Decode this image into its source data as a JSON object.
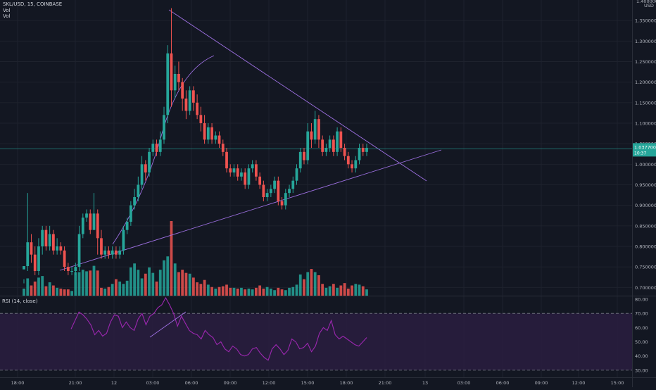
{
  "header": {
    "symbol": "SKL/USD, 15, COINBASE",
    "vol1": "Vol",
    "vol2": "Vol"
  },
  "rsi_panel": {
    "label": "RSI (14, close)"
  },
  "currency": "USD",
  "price_tag": {
    "value": "1.03770000",
    "sub": "10:37"
  },
  "colors": {
    "background": "#131722",
    "up": "#26a69a",
    "down": "#ef5350",
    "line": "#9c6fe0",
    "rsi_fill": "#2a1d3f",
    "rsi_line": "#9c27b0",
    "grid": "#1e222d",
    "price_line": "#26a69a"
  },
  "chart_data": {
    "type": "candlestick",
    "price_axis": {
      "ticks": [
        "0.70000000",
        "0.75000000",
        "0.80000000",
        "0.85000000",
        "0.90000000",
        "0.95000000",
        "1.00000000",
        "1.05000000",
        "1.10000000",
        "1.15000000",
        "1.20000000",
        "1.25000000",
        "1.30000000",
        "1.35000000",
        "1.40000000"
      ],
      "range": [
        0.68,
        1.4
      ]
    },
    "time_axis": {
      "labels": [
        "18:00",
        "21:00",
        "12",
        "03:00",
        "06:00",
        "09:00",
        "12:00",
        "15:00",
        "18:00",
        "21:00",
        "13",
        "03:00",
        "06:00",
        "09:00",
        "12:00",
        "15:00"
      ]
    },
    "rsi_axis": {
      "ticks": [
        "30.00",
        "40.00",
        "50.00",
        "60.00",
        "70.00",
        "80.00"
      ],
      "range": [
        25,
        82
      ],
      "bands": [
        30,
        70
      ]
    },
    "last_price": 1.0377,
    "candles": [
      [
        0.744,
        0.752,
        0.72,
        0.71
      ],
      [
        0.752,
        0.81,
        0.93,
        0.74
      ],
      [
        0.81,
        0.78,
        0.83,
        0.76
      ],
      [
        0.78,
        0.74,
        0.8,
        0.73
      ],
      [
        0.74,
        0.8,
        0.82,
        0.73
      ],
      [
        0.8,
        0.84,
        0.85,
        0.78
      ],
      [
        0.84,
        0.8,
        0.85,
        0.79
      ],
      [
        0.8,
        0.83,
        0.85,
        0.79
      ],
      [
        0.83,
        0.79,
        0.84,
        0.78
      ],
      [
        0.79,
        0.8,
        0.82,
        0.78
      ],
      [
        0.8,
        0.79,
        0.81,
        0.78
      ],
      [
        0.79,
        0.75,
        0.8,
        0.74
      ],
      [
        0.75,
        0.74,
        0.76,
        0.73
      ],
      [
        0.74,
        0.74,
        0.75,
        0.73
      ],
      [
        0.74,
        0.75,
        0.76,
        0.73
      ],
      [
        0.75,
        0.83,
        0.85,
        0.74
      ],
      [
        0.83,
        0.87,
        0.88,
        0.82
      ],
      [
        0.87,
        0.88,
        0.89,
        0.86
      ],
      [
        0.88,
        0.84,
        0.89,
        0.83
      ],
      [
        0.84,
        0.88,
        0.93,
        0.84
      ],
      [
        0.88,
        0.82,
        0.89,
        0.78
      ],
      [
        0.82,
        0.78,
        0.84,
        0.77
      ],
      [
        0.78,
        0.79,
        0.8,
        0.77
      ],
      [
        0.79,
        0.78,
        0.8,
        0.77
      ],
      [
        0.78,
        0.79,
        0.8,
        0.77
      ],
      [
        0.79,
        0.78,
        0.8,
        0.77
      ],
      [
        0.78,
        0.79,
        0.8,
        0.77
      ],
      [
        0.79,
        0.84,
        0.85,
        0.78
      ],
      [
        0.84,
        0.86,
        0.87,
        0.83
      ],
      [
        0.86,
        0.9,
        0.91,
        0.85
      ],
      [
        0.9,
        0.92,
        0.94,
        0.89
      ],
      [
        0.92,
        0.95,
        0.97,
        0.91
      ],
      [
        0.95,
        1.0,
        1.02,
        0.94
      ],
      [
        1.0,
        0.98,
        1.01,
        0.96
      ],
      [
        0.98,
        1.03,
        1.04,
        0.97
      ],
      [
        1.03,
        1.05,
        1.06,
        1.02
      ],
      [
        1.05,
        1.03,
        1.06,
        1.02
      ],
      [
        1.03,
        1.06,
        1.08,
        1.02
      ],
      [
        1.06,
        1.12,
        1.14,
        1.05
      ],
      [
        1.12,
        1.27,
        1.29,
        1.1
      ],
      [
        1.27,
        1.18,
        1.38,
        1.14
      ],
      [
        1.18,
        1.22,
        1.24,
        1.16
      ],
      [
        1.22,
        1.2,
        1.25,
        1.18
      ],
      [
        1.2,
        1.16,
        1.21,
        1.13
      ],
      [
        1.16,
        1.13,
        1.18,
        1.11
      ],
      [
        1.13,
        1.18,
        1.19,
        1.12
      ],
      [
        1.18,
        1.15,
        1.19,
        1.13
      ],
      [
        1.15,
        1.12,
        1.17,
        1.11
      ],
      [
        1.12,
        1.1,
        1.14,
        1.08
      ],
      [
        1.1,
        1.06,
        1.12,
        1.05
      ],
      [
        1.06,
        1.09,
        1.1,
        1.05
      ],
      [
        1.09,
        1.06,
        1.1,
        1.05
      ],
      [
        1.06,
        1.07,
        1.08,
        1.05
      ],
      [
        1.07,
        1.05,
        1.08,
        1.04
      ],
      [
        1.05,
        1.03,
        1.06,
        1.02
      ],
      [
        1.03,
        0.99,
        1.04,
        0.98
      ],
      [
        0.99,
        0.98,
        1.0,
        0.97
      ],
      [
        0.98,
        0.99,
        1.0,
        0.97
      ],
      [
        0.99,
        0.97,
        1.0,
        0.96
      ],
      [
        0.97,
        0.98,
        0.99,
        0.96
      ],
      [
        0.98,
        0.95,
        0.99,
        0.94
      ],
      [
        0.95,
        0.99,
        1.0,
        0.94
      ],
      [
        0.99,
        1.0,
        1.01,
        0.98
      ],
      [
        1.0,
        0.97,
        1.01,
        0.96
      ],
      [
        0.97,
        0.95,
        0.98,
        0.94
      ],
      [
        0.95,
        0.92,
        0.96,
        0.91
      ],
      [
        0.92,
        0.93,
        0.94,
        0.91
      ],
      [
        0.93,
        0.94,
        0.95,
        0.92
      ],
      [
        0.94,
        0.96,
        0.97,
        0.93
      ],
      [
        0.96,
        0.91,
        0.97,
        0.9
      ],
      [
        0.91,
        0.9,
        0.92,
        0.89
      ],
      [
        0.9,
        0.93,
        0.94,
        0.89
      ],
      [
        0.93,
        0.94,
        0.95,
        0.92
      ],
      [
        0.94,
        0.96,
        0.97,
        0.93
      ],
      [
        0.96,
        0.99,
        1.0,
        0.95
      ],
      [
        0.99,
        1.03,
        1.04,
        0.98
      ],
      [
        1.03,
        1.01,
        1.04,
        1.0
      ],
      [
        1.01,
        1.08,
        1.1,
        1.0
      ],
      [
        1.08,
        1.06,
        1.1,
        1.04
      ],
      [
        1.06,
        1.11,
        1.13,
        1.05
      ],
      [
        1.11,
        1.06,
        1.12,
        1.04
      ],
      [
        1.06,
        1.03,
        1.07,
        1.02
      ],
      [
        1.03,
        1.04,
        1.05,
        1.02
      ],
      [
        1.04,
        1.06,
        1.07,
        1.03
      ],
      [
        1.06,
        1.03,
        1.07,
        1.02
      ],
      [
        1.03,
        1.08,
        1.09,
        1.02
      ],
      [
        1.08,
        1.04,
        1.09,
        1.03
      ],
      [
        1.04,
        1.02,
        1.05,
        1.01
      ],
      [
        1.02,
        1.0,
        1.03,
        0.99
      ],
      [
        1.0,
        0.99,
        1.01,
        0.98
      ],
      [
        0.99,
        1.01,
        1.02,
        0.98
      ],
      [
        1.01,
        1.04,
        1.05,
        1.0
      ],
      [
        1.04,
        1.03,
        1.05,
        1.02
      ],
      [
        1.03,
        1.04,
        1.05,
        1.02
      ]
    ],
    "volume": [
      9,
      22,
      13,
      18,
      23,
      25,
      12,
      17,
      13,
      10,
      9,
      8,
      8,
      6,
      30,
      30,
      33,
      31,
      32,
      38,
      32,
      10,
      9,
      11,
      15,
      21,
      18,
      15,
      19,
      36,
      41,
      33,
      22,
      28,
      36,
      29,
      18,
      33,
      45,
      50,
      95,
      41,
      30,
      33,
      29,
      28,
      23,
      17,
      15,
      20,
      14,
      11,
      9,
      11,
      12,
      14,
      10,
      10,
      9,
      10,
      8,
      9,
      8,
      10,
      13,
      9,
      11,
      9,
      7,
      10,
      8,
      7,
      10,
      11,
      14,
      27,
      21,
      30,
      34,
      30,
      26,
      15,
      10,
      12,
      15,
      10,
      13,
      16,
      9,
      13,
      15,
      14,
      12,
      8
    ],
    "rsi": [
      59,
      65,
      71,
      69,
      66,
      62,
      55,
      58,
      54,
      56,
      64,
      69,
      68,
      60,
      64,
      60,
      58,
      66,
      70,
      62,
      68,
      70,
      74,
      76,
      81,
      76,
      70,
      61,
      68,
      63,
      58,
      56,
      55,
      52,
      58,
      55,
      53,
      48,
      50,
      45,
      43,
      47,
      45,
      41,
      40,
      41,
      45,
      46,
      42,
      39,
      37,
      45,
      48,
      45,
      41,
      44,
      52,
      50,
      45,
      46,
      49,
      43,
      47,
      56,
      60,
      58,
      65,
      55,
      52,
      54,
      52,
      50,
      48,
      47,
      50,
      53
    ]
  }
}
